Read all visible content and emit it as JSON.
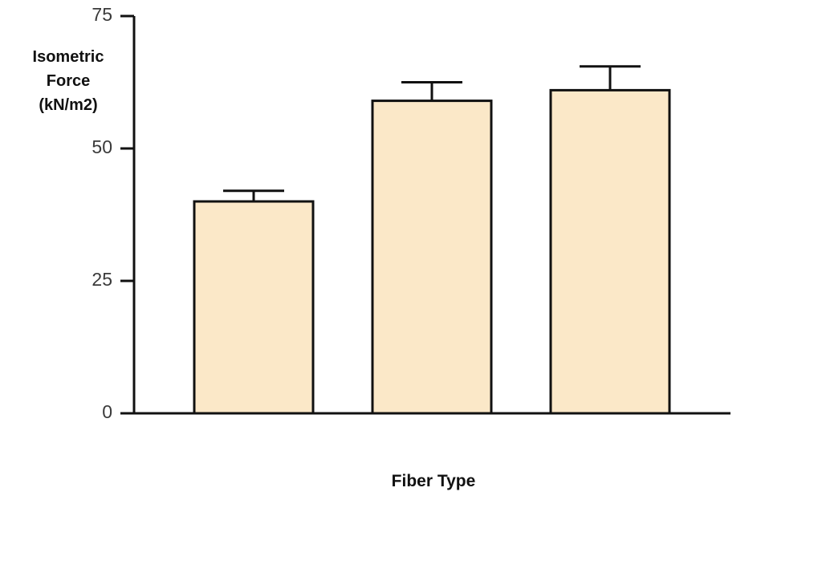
{
  "chart_data": {
    "type": "bar",
    "y_label": "Isometric Force (kN/m2)",
    "x_label": "Fiber Type",
    "categories": [
      null,
      null,
      null
    ],
    "values": [
      40,
      59,
      61
    ],
    "errors": [
      2,
      3.5,
      4.5
    ],
    "color": "#fbe8c8",
    "ylim": [
      0,
      75
    ],
    "yticks": [
      0,
      25,
      50,
      75
    ],
    "grid": false
  }
}
